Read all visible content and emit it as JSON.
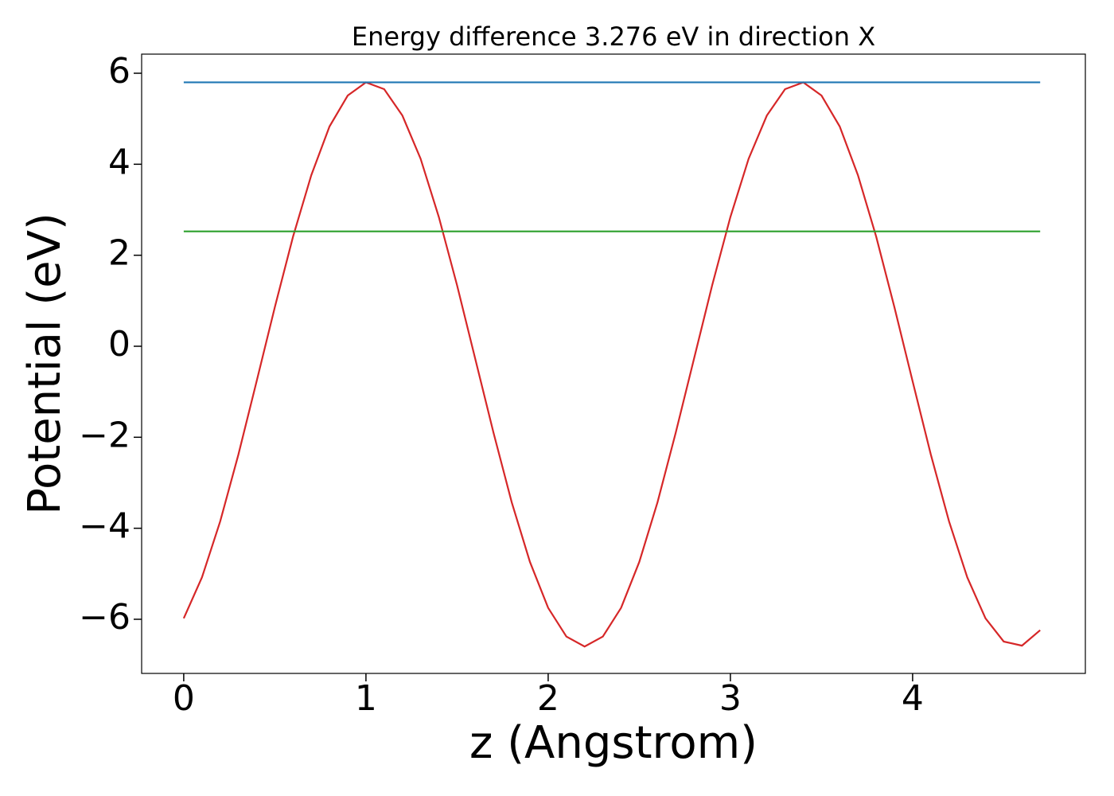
{
  "chart_data": {
    "type": "line",
    "title": "Energy difference 3.276 eV in direction X",
    "xlabel": "z (Angstrom)",
    "ylabel": "Potential (eV)",
    "xlim": [
      -0.231,
      4.948
    ],
    "ylim": [
      -7.19,
      6.42
    ],
    "xticks": [
      0,
      1,
      2,
      3,
      4
    ],
    "yticks": [
      {
        "value": -6,
        "label": "−6"
      },
      {
        "value": -4,
        "label": "−4"
      },
      {
        "value": -2,
        "label": "−2"
      },
      0,
      2,
      4,
      6
    ],
    "series": [
      {
        "color": "#d62728",
        "x": [
          0,
          0.1,
          0.2,
          0.3,
          0.4,
          0.5,
          0.6,
          0.7,
          0.8,
          0.9,
          1.0,
          1.1,
          1.2,
          1.3,
          1.4,
          1.5,
          1.6,
          1.7,
          1.8,
          1.9,
          2.0,
          2.1,
          2.2,
          2.3,
          2.4,
          2.5,
          2.6,
          2.7,
          2.8,
          2.9,
          3.0,
          3.1,
          3.2,
          3.3,
          3.4,
          3.5,
          3.6,
          3.7,
          3.8,
          3.9,
          4.0,
          4.1,
          4.2,
          4.3,
          4.4,
          4.5,
          4.6,
          4.7
        ],
        "values": [
          -5.98,
          -5.08,
          -3.85,
          -2.38,
          -0.77,
          0.86,
          2.41,
          3.76,
          4.83,
          5.51,
          5.8,
          5.65,
          5.07,
          4.12,
          2.84,
          1.34,
          -0.28,
          -1.9,
          -3.43,
          -4.74,
          -5.75,
          -6.38,
          -6.6,
          -6.38,
          -5.75,
          -4.74,
          -3.43,
          -1.9,
          -0.28,
          1.34,
          2.84,
          4.12,
          5.07,
          5.65,
          5.8,
          5.51,
          4.83,
          3.76,
          2.41,
          0.86,
          -0.77,
          -2.38,
          -3.85,
          -5.08,
          -5.98,
          -6.49,
          -6.58,
          -6.24
        ]
      },
      {
        "color": "#1f77b4",
        "x": [
          0,
          4.7
        ],
        "values": [
          5.8,
          5.8
        ]
      },
      {
        "color": "#2ca02c",
        "x": [
          0,
          4.7
        ],
        "values": [
          2.524,
          2.524
        ]
      }
    ]
  }
}
